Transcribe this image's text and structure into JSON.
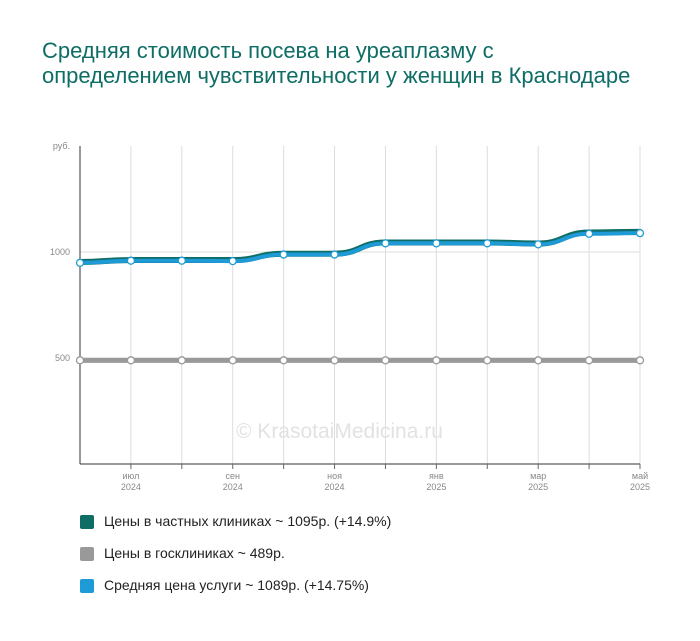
{
  "title": "Средняя стоимость посева на уреаплазму с определением чувствительности у женщин в Краснодаре",
  "watermark": "© KrasotaiMedicina.ru",
  "legend": [
    {
      "label": "Цены в частных клиниках ~ 1095р. (+14.9%)",
      "color": "#0e6d65"
    },
    {
      "label": "Цены в госклиниках ~ 489р.",
      "color": "#999999"
    },
    {
      "label": "Средняя цена услуги ~ 1089р. (+14.75%)",
      "color": "#1e9ad6"
    }
  ],
  "chart_data": {
    "type": "line",
    "ylabel": "руб.",
    "ylim": [
      0,
      1500
    ],
    "y_ticks": [
      {
        "value": 500,
        "label": "500"
      },
      {
        "value": 1000,
        "label": "1000"
      }
    ],
    "grid": true,
    "categories": [
      "2024-06",
      "2024-07",
      "2024-08",
      "2024-09",
      "2024-10",
      "2024-11",
      "2024-12",
      "2025-01",
      "2025-02",
      "2025-03",
      "2025-04",
      "2025-05"
    ],
    "x_tick_labels": [
      {
        "index": 1,
        "month": "июл",
        "year": "2024"
      },
      {
        "index": 3,
        "month": "сен",
        "year": "2024"
      },
      {
        "index": 5,
        "month": "ноя",
        "year": "2024"
      },
      {
        "index": 7,
        "month": "янв",
        "year": "2025"
      },
      {
        "index": 9,
        "month": "мар",
        "year": "2025"
      },
      {
        "index": 11,
        "month": "май",
        "year": "2025"
      }
    ],
    "series": [
      {
        "name": "Цены в частных клиниках",
        "color": "#0e6d65",
        "values": [
          953,
          962,
          962,
          962,
          992,
          992,
          1045,
          1045,
          1045,
          1040,
          1092,
          1095
        ]
      },
      {
        "name": "Цены в госклиниках",
        "color": "#999999",
        "values": [
          489,
          489,
          489,
          489,
          489,
          489,
          489,
          489,
          489,
          489,
          489,
          489
        ]
      },
      {
        "name": "Средняя цена услуги",
        "color": "#1e9ad6",
        "values": [
          949,
          959,
          959,
          957,
          988,
          988,
          1041,
          1041,
          1041,
          1036,
          1086,
          1089
        ]
      }
    ]
  }
}
